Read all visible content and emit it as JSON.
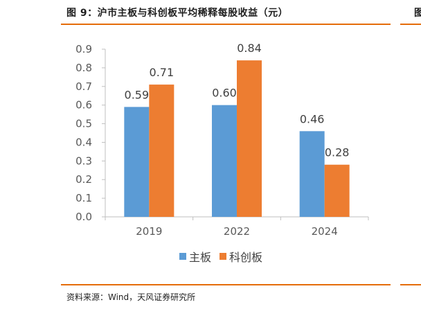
{
  "figure": {
    "title": "图 9：沪市主板与科创板平均稀释每股收益（元）",
    "edge_glyph": "图",
    "source": "资料来源：Wind，天风证券研究所"
  },
  "colors": {
    "main_board": "#5b9bd5",
    "star_market": "#ed7d31",
    "rule": "#e46c0a"
  },
  "chart_data": {
    "type": "bar",
    "categories": [
      "2019",
      "2022",
      "2024"
    ],
    "series": [
      {
        "name": "主板",
        "values": [
          0.59,
          0.6,
          0.46
        ],
        "labels": [
          "0.59",
          "0.60",
          "0.46"
        ]
      },
      {
        "name": "科创板",
        "values": [
          0.71,
          0.84,
          0.28
        ],
        "labels": [
          "0.71",
          "0.84",
          "0.28"
        ]
      }
    ],
    "ylim": [
      0,
      0.9
    ],
    "yticks": [
      "0.0",
      "0.1",
      "0.2",
      "0.3",
      "0.4",
      "0.5",
      "0.6",
      "0.7",
      "0.8",
      "0.9"
    ],
    "legend_position": "bottom",
    "grid": false
  }
}
